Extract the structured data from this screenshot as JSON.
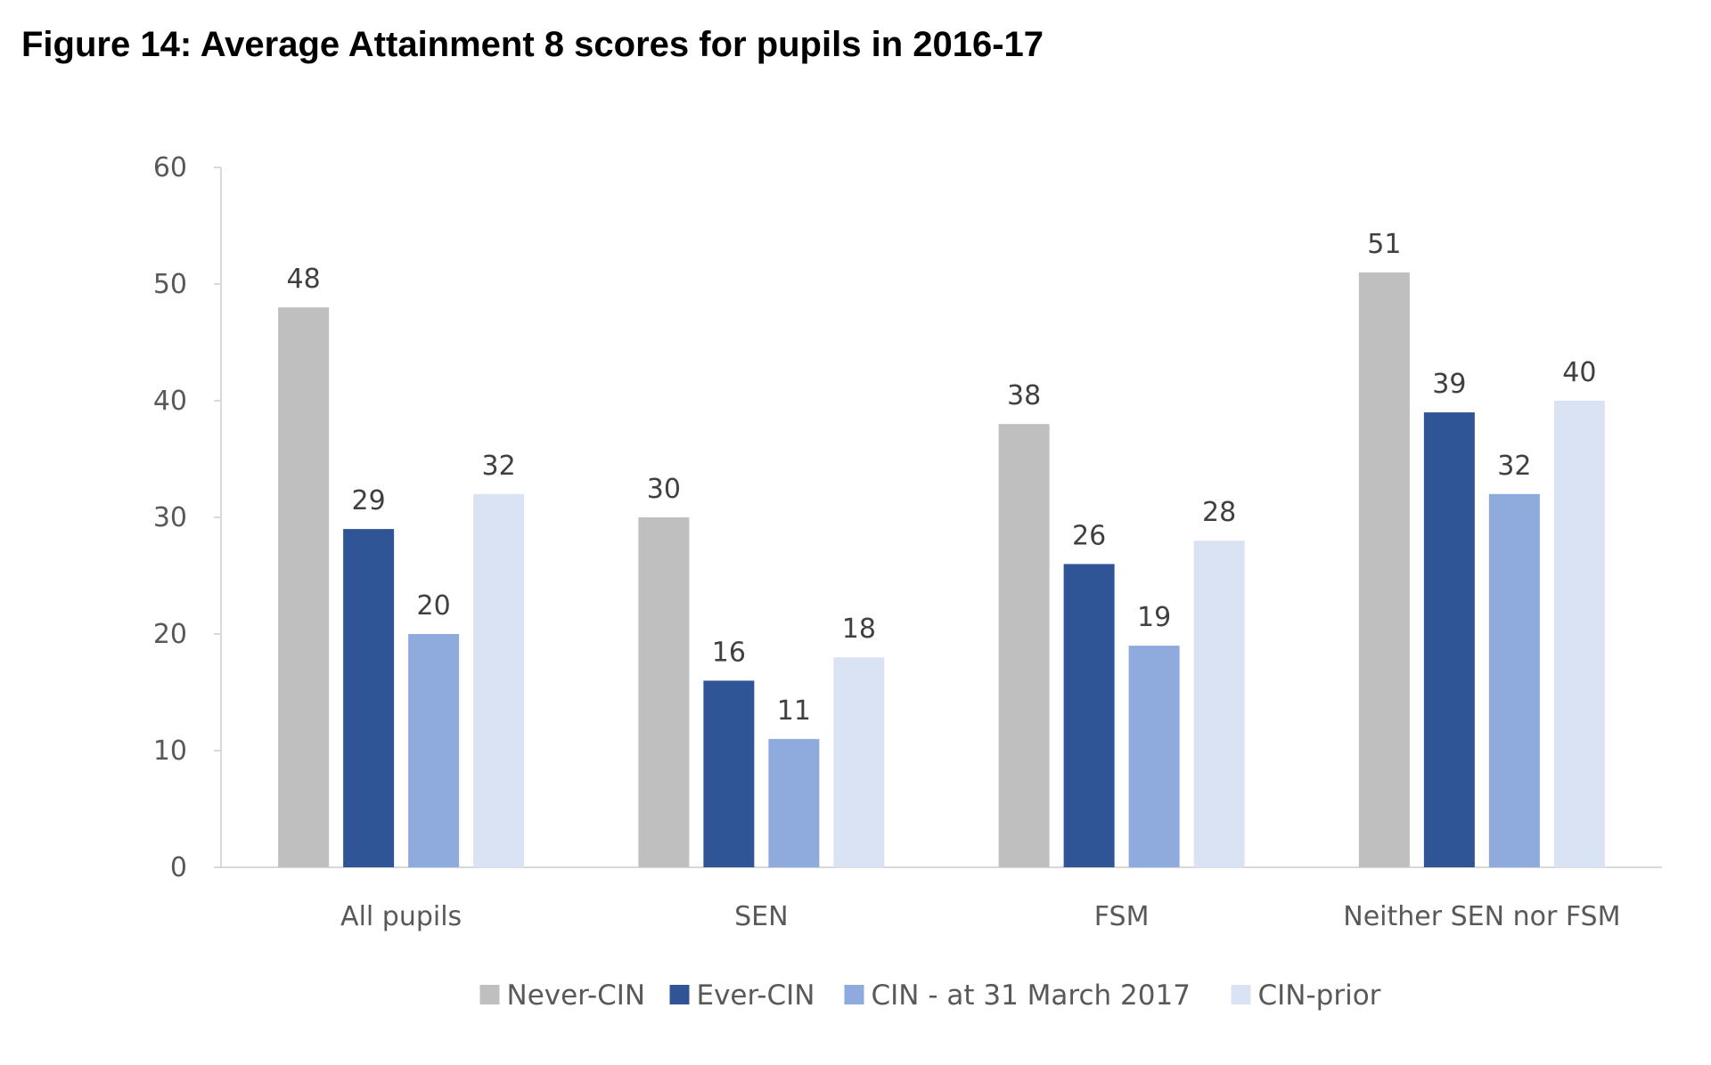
{
  "chart_data": {
    "type": "bar",
    "title": "Figure 14: Average Attainment 8 scores for pupils in 2016-17",
    "xlabel": "",
    "ylabel": "",
    "ylim": [
      0,
      60
    ],
    "yticks": [
      0,
      10,
      20,
      30,
      40,
      50,
      60
    ],
    "grid": false,
    "legend_position": "bottom",
    "categories": [
      "All pupils",
      "SEN",
      "FSM",
      "Neither SEN nor FSM"
    ],
    "series": [
      {
        "name": "Never-CIN",
        "color": "#BFBFBF",
        "values": [
          48,
          30,
          38,
          51
        ]
      },
      {
        "name": "Ever-CIN",
        "color": "#2F5597",
        "values": [
          29,
          16,
          26,
          39
        ]
      },
      {
        "name": "CIN - at 31 March 2017",
        "color": "#8FAADC",
        "values": [
          20,
          11,
          19,
          32
        ]
      },
      {
        "name": "CIN-prior",
        "color": "#DAE3F3",
        "values": [
          32,
          18,
          28,
          40
        ]
      }
    ]
  }
}
